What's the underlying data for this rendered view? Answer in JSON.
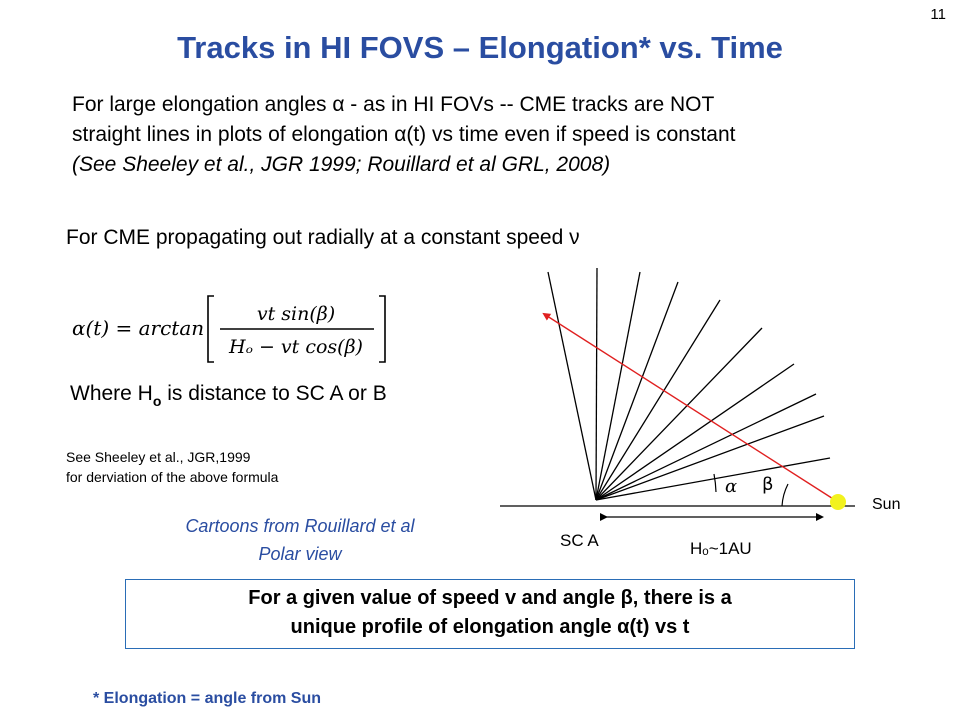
{
  "slide": {
    "number": "11",
    "title": "Tracks in HI FOVS – Elongation* vs. Time"
  },
  "intro": {
    "line1": "For large elongation angles α - as in HI FOVs -- CME tracks are NOT",
    "line2": "straight lines in plots of elongation α(t) vs time even if speed is constant",
    "line3": "(See  Sheeley et al., JGR 1999; Rouillard et al GRL, 2008)"
  },
  "cme_line": "For CME propagating out radially at a constant speed ν",
  "formula": {
    "lhs": "α(t) = arctan",
    "numerator": "vt sin(β)",
    "denominator": "Hₒ − vt cos(β)"
  },
  "where": {
    "prefix": "Where H",
    "sub": "o",
    "suffix": " is distance to SC A or B"
  },
  "ref_note": {
    "line1": "See Sheeley et al., JGR,1999",
    "line2": "for derviation of  the above formula"
  },
  "caption": {
    "line1": "Cartoons from Rouillard et al",
    "line2": "Polar view"
  },
  "diagram": {
    "alpha_label": "α",
    "beta_label": "β",
    "sun_label": "Sun",
    "sc_label": "SC A",
    "distance_label": "Hₒ~1AU",
    "colors": {
      "track": "#e02020",
      "sun": "#f2f21e",
      "rays": "#000000"
    }
  },
  "summary": {
    "line1": "For a given value of speed v and angle β, there is a",
    "line2": "unique profile of elongation angle α(t) vs t"
  },
  "footnote": "* Elongation = angle from Sun"
}
